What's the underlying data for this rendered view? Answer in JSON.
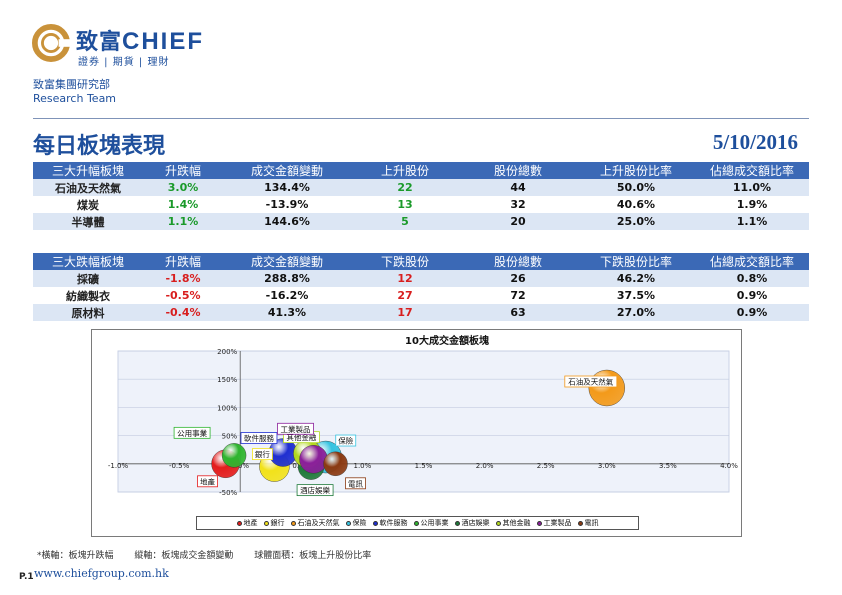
{
  "brand": {
    "name_cn": "致富",
    "name_en": "CHIEF",
    "tagline": "證券 | 期貨 | 理財",
    "colors": {
      "primary": "#1e4f9c",
      "accent_gold": "#c9923a",
      "table_header": "#3b69b6",
      "row_shade": "#dce6f4"
    }
  },
  "dept": {
    "cn": "致富集團研究部",
    "en": "Research Team"
  },
  "page": {
    "title": "每日板塊表現",
    "date": "5/10/2016",
    "number": "P.1",
    "website": "www.chiefgroup.com.hk"
  },
  "table_up": {
    "headers": [
      "三大升幅板塊",
      "升跌幅",
      "成交金額變動",
      "上升股份",
      "股份總數",
      "上升股份比率",
      "佔總成交額比率"
    ],
    "rows": [
      {
        "sector": "石油及天然氣",
        "change": "3.0%",
        "turnover_change": "134.4%",
        "count": "22",
        "total": "44",
        "ratio": "50.0%",
        "share": "11.0%"
      },
      {
        "sector": "煤炭",
        "change": "1.4%",
        "turnover_change": "-13.9%",
        "count": "13",
        "total": "32",
        "ratio": "40.6%",
        "share": "1.9%"
      },
      {
        "sector": "半導體",
        "change": "1.1%",
        "turnover_change": "144.6%",
        "count": "5",
        "total": "20",
        "ratio": "25.0%",
        "share": "1.1%"
      }
    ]
  },
  "table_down": {
    "headers": [
      "三大跌幅板塊",
      "升跌幅",
      "成交金額變動",
      "下跌股份",
      "股份總數",
      "下跌股份比率",
      "佔總成交額比率"
    ],
    "rows": [
      {
        "sector": "採礦",
        "change": "-1.8%",
        "turnover_change": "288.8%",
        "count": "12",
        "total": "26",
        "ratio": "46.2%",
        "share": "0.8%"
      },
      {
        "sector": "紡織製衣",
        "change": "-0.5%",
        "turnover_change": "-16.2%",
        "count": "27",
        "total": "72",
        "ratio": "37.5%",
        "share": "0.9%"
      },
      {
        "sector": "原材料",
        "change": "-0.4%",
        "turnover_change": "41.3%",
        "count": "17",
        "total": "63",
        "ratio": "27.0%",
        "share": "0.9%"
      }
    ]
  },
  "chart_data": {
    "type": "scatter",
    "title": "10大成交金額板塊",
    "xlim": [
      -1.0,
      4.0
    ],
    "ylim": [
      -50,
      200
    ],
    "x_ticks": [
      "-1.0%",
      "-0.5%",
      "0.0%",
      "0.5%",
      "1.0%",
      "1.5%",
      "2.0%",
      "2.5%",
      "3.0%",
      "3.5%",
      "4.0%"
    ],
    "y_ticks": [
      "-50%",
      "0%",
      "50%",
      "100%",
      "150%",
      "200%"
    ],
    "grid": true,
    "legend_position": "bottom",
    "series": [
      {
        "name": "地產",
        "x": -0.12,
        "y": 0,
        "size": 14,
        "color": "#e41c1c"
      },
      {
        "name": "銀行",
        "x": 0.28,
        "y": -5,
        "size": 15,
        "color": "#f2e21a"
      },
      {
        "name": "石油及天然氣",
        "x": 3.0,
        "y": 134.4,
        "size": 18,
        "color": "#f39a1a"
      },
      {
        "name": "保險",
        "x": 0.7,
        "y": 12,
        "size": 16,
        "color": "#36c3e0"
      },
      {
        "name": "軟件服務",
        "x": 0.35,
        "y": 20,
        "size": 14,
        "color": "#1f2fd1"
      },
      {
        "name": "公用事業",
        "x": -0.05,
        "y": 15,
        "size": 12,
        "color": "#2fb52f"
      },
      {
        "name": "酒店娛樂",
        "x": 0.58,
        "y": -5,
        "size": 13,
        "color": "#1f7a3a"
      },
      {
        "name": "其他金融",
        "x": 0.55,
        "y": 18,
        "size": 14,
        "color": "#b2d81e"
      },
      {
        "name": "工業製品",
        "x": 0.6,
        "y": 8,
        "size": 14,
        "color": "#8a1f9a"
      },
      {
        "name": "電訊",
        "x": 0.78,
        "y": 0,
        "size": 12,
        "color": "#8b3a12"
      }
    ]
  },
  "notes": [
    "*橫軸：板塊升跌幅",
    "縱軸：板塊成交金額變動",
    "球體面積：板塊上升股份比率"
  ]
}
